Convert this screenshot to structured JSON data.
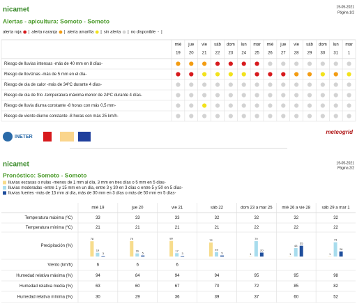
{
  "page1": {
    "logo": "nicamet",
    "date": "19-05-2021",
    "page": "Página 1/2",
    "title": "Alertas - apicultura: Somoto - Somoto",
    "separator": "|",
    "legend": [
      {
        "label": "alerta roja",
        "color": "#d7191c"
      },
      {
        "label": "alerta naranja",
        "color": "#f39c12"
      },
      {
        "label": "alerta amarilla",
        "color": "#f2e21c"
      },
      {
        "label": "sin alerta",
        "color": "#d3d3d3"
      },
      {
        "label": "no disponible",
        "symbol": "-"
      }
    ],
    "days": [
      [
        "mié",
        "19"
      ],
      [
        "jue",
        "20"
      ],
      [
        "vie",
        "21"
      ],
      [
        "sáb",
        "22"
      ],
      [
        "dom",
        "23"
      ],
      [
        "lun",
        "24"
      ],
      [
        "mar",
        "25"
      ],
      [
        "mié",
        "26"
      ],
      [
        "jue",
        "27"
      ],
      [
        "vie",
        "28"
      ],
      [
        "sáb",
        "29"
      ],
      [
        "dom",
        "30"
      ],
      [
        "lun",
        "31"
      ],
      [
        "mar",
        "1"
      ]
    ],
    "rows": [
      {
        "label": "Riesgo de lluvias intensas -más de 40 mm en 8 días-",
        "colors": [
          "#f39c12",
          "#f39c12",
          "#f39c12",
          "#d7191c",
          "#d7191c",
          "#d7191c",
          "#d7191c",
          "#d3d3d3",
          "#d3d3d3",
          "#d3d3d3",
          "#d3d3d3",
          "#d3d3d3",
          "#d3d3d3",
          "#d3d3d3"
        ]
      },
      {
        "label": "Riesgo de lloviznas -más de 5 mm en el día-",
        "colors": [
          "#d7191c",
          "#d7191c",
          "#f2e21c",
          "#f2e21c",
          "#f2e21c",
          "#f2e21c",
          "#d7191c",
          "#d7191c",
          "#d7191c",
          "#f39c12",
          "#f39c12",
          "#f2e21c",
          "#f39c12",
          "#f2e21c"
        ]
      },
      {
        "label": "Riesgo de ola de calor -más de 34ºC durante 4 días-",
        "colors": [
          "#d3d3d3",
          "#d3d3d3",
          "#d3d3d3",
          "#d3d3d3",
          "#d3d3d3",
          "#d3d3d3",
          "#d3d3d3",
          "#d3d3d3",
          "#d3d3d3",
          "#d3d3d3",
          "#d3d3d3",
          "#d3d3d3",
          "#d3d3d3",
          "#d3d3d3"
        ]
      },
      {
        "label": "Riesgo de ola de frío -temperatura máxima menor de 24ºC durante 4 días-",
        "colors": [
          "#d3d3d3",
          "#d3d3d3",
          "#d3d3d3",
          "#d3d3d3",
          "#d3d3d3",
          "#d3d3d3",
          "#d3d3d3",
          "#d3d3d3",
          "#d3d3d3",
          "#d3d3d3",
          "#d3d3d3",
          "#d3d3d3",
          "#d3d3d3",
          "#d3d3d3"
        ]
      },
      {
        "label": "Riesgo de lluvia diurna constante -8 horas con más 0,5 mm-",
        "colors": [
          "#d3d3d3",
          "#d3d3d3",
          "#f2e21c",
          "#d3d3d3",
          "#d3d3d3",
          "#d3d3d3",
          "#d3d3d3",
          "#d3d3d3",
          "#d3d3d3",
          "#d3d3d3",
          "#d3d3d3",
          "#d3d3d3",
          "#d3d3d3",
          "#d3d3d3"
        ]
      },
      {
        "label": "Riesgo de viento diurno constante -8 horas con más 25 km/h-",
        "colors": [
          "#d3d3d3",
          "#d3d3d3",
          "#d3d3d3",
          "#d3d3d3",
          "#d3d3d3",
          "#d3d3d3",
          "#d3d3d3",
          "#d3d3d3",
          "#d3d3d3",
          "#d3d3d3",
          "#d3d3d3",
          "#d3d3d3",
          "#d3d3d3",
          "#d3d3d3"
        ]
      }
    ],
    "footer": {
      "left": "INETER",
      "right": "meteogrid"
    }
  },
  "page2": {
    "logo": "nicamet",
    "date": "19-05-2021",
    "page": "Página 2/2",
    "title": "Pronóstico: Somoto - Somoto",
    "legend": [
      {
        "label": "lluvias escasas o nulas -menos de 1 mm al día, 3 mm en tres días o 5 mm en 5 días-",
        "color": "#f7dc8c"
      },
      {
        "label": "lluvias moderadas -entre 1 y 15 mm en un día, entre 3 y 30 en 3 días o entre 5 y 50 en 5 días-",
        "color": "#a8dced"
      },
      {
        "label": "lluvias fuertes -más de 15 mm al día, más de 30 mm en 3 días o más de 50 mm en 5 días-",
        "color": "#1f4e9c"
      }
    ],
    "columns": [
      "mié 19",
      "jue 20",
      "vie 21",
      "sáb 22",
      "dom 23 a mar 25",
      "mié 26 a vie 28",
      "sáb 29 a mar 1"
    ],
    "rows": [
      {
        "label": "Temperatura máxima (ºC)",
        "values": [
          33,
          33,
          33,
          32,
          32,
          32,
          32
        ]
      },
      {
        "label": "Temperatura mínima (ºC)",
        "values": [
          21,
          21,
          21,
          21,
          22,
          22,
          22
        ]
      },
      {
        "label": "Precipitación (%)",
        "bars": [
          [
            78,
            19,
            3
          ],
          [
            79,
            16,
            5
          ],
          [
            80,
            17,
            3
          ],
          [
            72,
            23,
            5
          ],
          [
            1,
            79,
            20
          ],
          [
            1,
            43,
            55
          ],
          [
            1,
            73,
            26
          ]
        ]
      },
      {
        "label": "Viento (km/h)",
        "values": [
          6,
          6,
          6,
          null,
          null,
          null,
          null
        ]
      },
      {
        "label": "Humedad relativa máxima (%)",
        "values": [
          94,
          84,
          94,
          94,
          95,
          95,
          98
        ]
      },
      {
        "label": "Humedad relativa media (%)",
        "values": [
          63,
          60,
          67,
          70,
          72,
          85,
          82
        ]
      },
      {
        "label": "Humedad relativa mínima (%)",
        "values": [
          30,
          29,
          36,
          39,
          37,
          60,
          52
        ]
      }
    ]
  }
}
